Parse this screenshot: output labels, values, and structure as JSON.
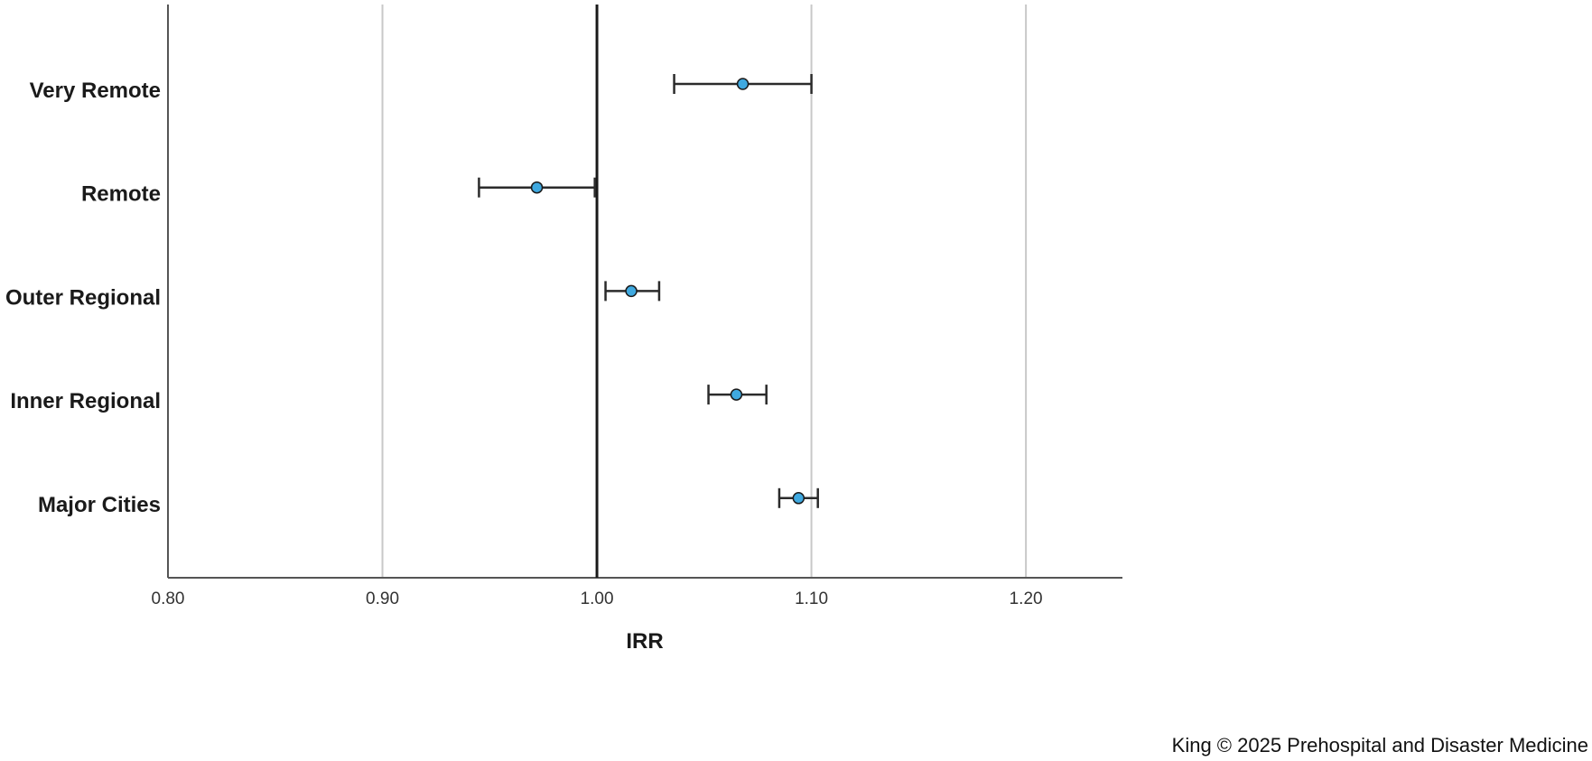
{
  "chart_data": {
    "type": "scatter",
    "subtype": "forest-plot",
    "categories": [
      "Very Remote",
      "Remote",
      "Outer Regional",
      "Inner Regional",
      "Major Cities"
    ],
    "points": [
      {
        "category": "Very Remote",
        "value": 1.068,
        "lower": 1.036,
        "upper": 1.1
      },
      {
        "category": "Remote",
        "value": 0.972,
        "lower": 0.945,
        "upper": 0.999
      },
      {
        "category": "Outer Regional",
        "value": 1.016,
        "lower": 1.004,
        "upper": 1.029
      },
      {
        "category": "Inner Regional",
        "value": 1.065,
        "lower": 1.052,
        "upper": 1.079
      },
      {
        "category": "Major Cities",
        "value": 1.094,
        "lower": 1.085,
        "upper": 1.103
      }
    ],
    "xlabel": "IRR",
    "xlim": [
      0.8,
      1.245
    ],
    "xticks": [
      0.8,
      0.9,
      1.0,
      1.1,
      1.2
    ],
    "xtick_labels": [
      "0.80",
      "0.90",
      "1.00",
      "1.10",
      "1.20"
    ],
    "reference_line": 1.0,
    "grid": "vertical",
    "colors": {
      "marker_fill": "#3fa9e0",
      "marker_stroke": "#1a1a1a",
      "gridline": "#c8c8c8",
      "reference": "#1a1a1a"
    }
  },
  "credit": "King © 2025 Prehospital and Disaster Medicine"
}
